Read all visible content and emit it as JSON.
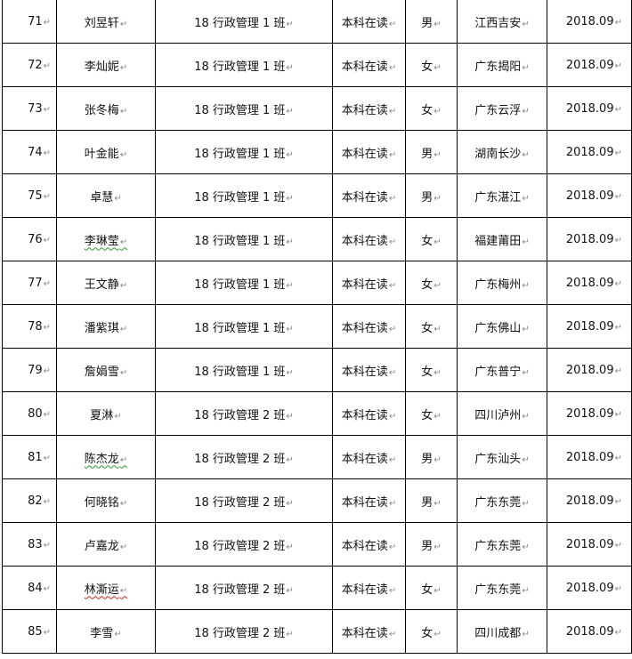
{
  "table": {
    "rows": [
      {
        "no": "71",
        "name": "刘昱轩",
        "class": "18 行政管理 1 班",
        "status": "本科在读",
        "gender": "男",
        "origin": "江西吉安",
        "year": "2018.09"
      },
      {
        "no": "72",
        "name": "李灿妮",
        "class": "18 行政管理 1 班",
        "status": "本科在读",
        "gender": "女",
        "origin": "广东揭阳",
        "year": "2018.09"
      },
      {
        "no": "73",
        "name": "张冬梅",
        "class": "18 行政管理 1 班",
        "status": "本科在读",
        "gender": "女",
        "origin": "广东云浮",
        "year": "2018.09"
      },
      {
        "no": "74",
        "name": "叶金能",
        "class": "18 行政管理 1 班",
        "status": "本科在读",
        "gender": "男",
        "origin": "湖南长沙",
        "year": "2018.09"
      },
      {
        "no": "75",
        "name": "卓慧",
        "class": "18 行政管理 1 班",
        "status": "本科在读",
        "gender": "男",
        "origin": "广东湛江",
        "year": "2018.09"
      },
      {
        "no": "76",
        "name": "李琳莹",
        "class": "18 行政管理 1 班",
        "status": "本科在读",
        "gender": "女",
        "origin": "福建莆田",
        "year": "2018.09"
      },
      {
        "no": "77",
        "name": "王文静",
        "class": "18 行政管理 1 班",
        "status": "本科在读",
        "gender": "女",
        "origin": "广东梅州",
        "year": "2018.09"
      },
      {
        "no": "78",
        "name": "潘紫琪",
        "class": "18 行政管理 1 班",
        "status": "本科在读",
        "gender": "女",
        "origin": "广东佛山",
        "year": "2018.09"
      },
      {
        "no": "79",
        "name": "詹娟雪",
        "class": "18 行政管理 1 班",
        "status": "本科在读",
        "gender": "女",
        "origin": "广东普宁",
        "year": "2018.09"
      },
      {
        "no": "80",
        "name": "夏淋",
        "class": "18 行政管理 2 班",
        "status": "本科在读",
        "gender": "女",
        "origin": "四川泸州",
        "year": "2018.09"
      },
      {
        "no": "81",
        "name": "陈杰龙",
        "class": "18 行政管理 2 班",
        "status": "本科在读",
        "gender": "男",
        "origin": "广东汕头",
        "year": "2018.09"
      },
      {
        "no": "82",
        "name": "何晓铭",
        "class": "18 行政管理 2 班",
        "status": "本科在读",
        "gender": "男",
        "origin": "广东东莞",
        "year": "2018.09"
      },
      {
        "no": "83",
        "name": "卢嘉龙",
        "class": "18 行政管理 2 班",
        "status": "本科在读",
        "gender": "男",
        "origin": "广东东莞",
        "year": "2018.09"
      },
      {
        "no": "84",
        "name": "林澌运",
        "class": "18 行政管理 2 班",
        "status": "本科在读",
        "gender": "女",
        "origin": "广东东莞",
        "year": "2018.09"
      },
      {
        "no": "85",
        "name": "李雪",
        "class": "18 行政管理 2 班",
        "status": "本科在读",
        "gender": "女",
        "origin": "四川成都",
        "year": "2018.09"
      }
    ]
  }
}
